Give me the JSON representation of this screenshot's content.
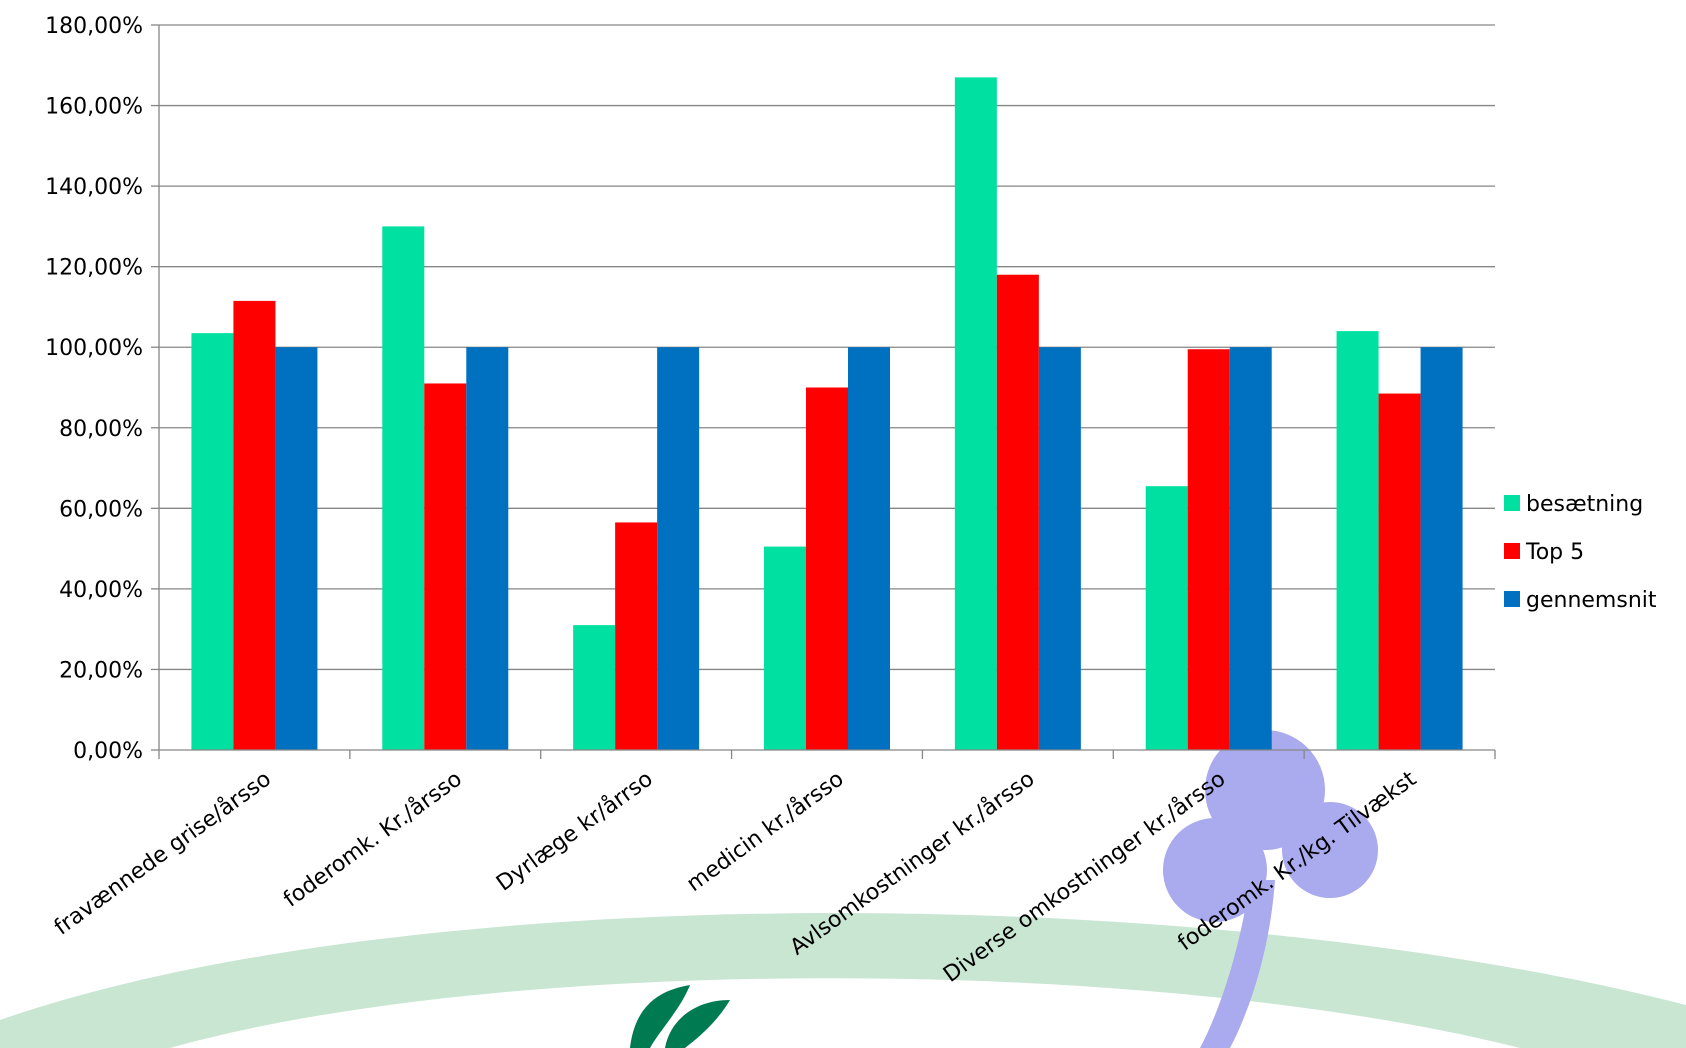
{
  "chart_data": {
    "type": "bar",
    "categories": [
      "fravænnede grise/årsso",
      "foderomk. Kr./årsso",
      "Dyrlæge kr/årrso",
      "medicin kr./årsso",
      "Avlsomkostninger kr./årsso",
      "Diverse omkostninger kr./årsso",
      "foderomk. Kr./kg. Tilvækst"
    ],
    "series": [
      {
        "name": "besætning",
        "color": "#00E0A0",
        "values": [
          103.5,
          130.0,
          31.0,
          50.5,
          167.0,
          65.5,
          104.0
        ]
      },
      {
        "name": "Top 5",
        "color": "#FF0000",
        "values": [
          111.5,
          91.0,
          56.5,
          90.0,
          118.0,
          99.5,
          88.5
        ]
      },
      {
        "name": "gennemsnit",
        "color": "#0070C0",
        "values": [
          100.0,
          100.0,
          100.0,
          100.0,
          100.0,
          100.0,
          100.0
        ]
      }
    ],
    "y_ticks": [
      "0,00%",
      "20,00%",
      "40,00%",
      "60,00%",
      "80,00%",
      "100,00%",
      "120,00%",
      "140,00%",
      "160,00%",
      "180,00%"
    ],
    "ylim": [
      0,
      180
    ],
    "y_unit": "percent",
    "grid": true,
    "legend_position": "right",
    "title": "",
    "xlabel": "",
    "ylabel": ""
  },
  "background": {
    "arc_color": "#C9E6D3",
    "logo_leaf_color": "#007A50",
    "logo_clover_color": "#AAAAEE"
  }
}
